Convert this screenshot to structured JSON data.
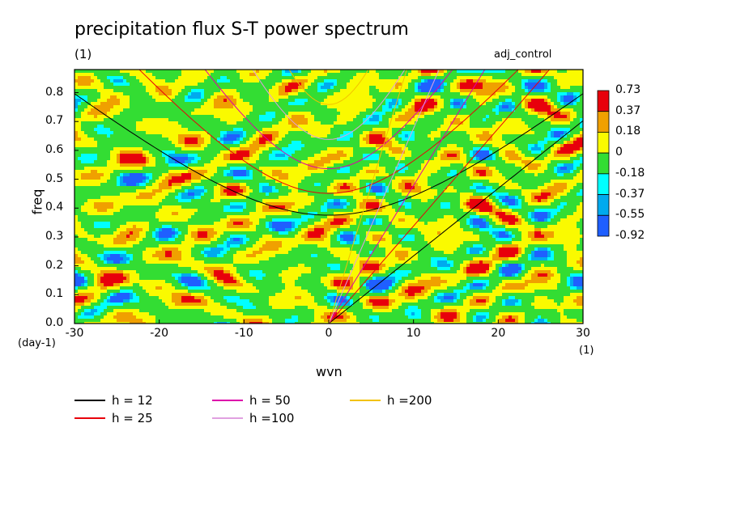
{
  "title": "precipitation flux S-T power spectrum",
  "subtitle": "(1)",
  "run_label": "adj_control",
  "chart_data": {
    "type": "heatmap",
    "xlabel": "wvn",
    "ylabel": "freq",
    "x_units": "(1)",
    "y_units": "(day-1)",
    "xlim": [
      -30,
      30
    ],
    "ylim": [
      0,
      0.88
    ],
    "x_ticks": [
      "-30",
      "-20",
      "-10",
      "0",
      "10",
      "20",
      "30"
    ],
    "y_ticks": [
      "0.0",
      "0.1",
      "0.2",
      "0.3",
      "0.4",
      "0.5",
      "0.6",
      "0.7",
      "0.8"
    ],
    "colorbar": {
      "levels": [
        "0.73",
        "0.37",
        "0.18",
        "0",
        "-0.18",
        "-0.37",
        "-0.55",
        "-0.92"
      ],
      "colors": [
        "#e8000b",
        "#f0a000",
        "#fafa00",
        "#33dd33",
        "#00ffff",
        "#00aaee",
        "#1f5fff"
      ]
    },
    "dispersion_curves": [
      {
        "name": "h = 12",
        "color": "#000000"
      },
      {
        "name": "h = 25",
        "color": "#e8000b"
      },
      {
        "name": "h = 50",
        "color": "#dd00aa"
      },
      {
        "name": "h =100",
        "color": "#e0a0e0"
      },
      {
        "name": "h =200",
        "color": "#f2c200"
      }
    ]
  }
}
